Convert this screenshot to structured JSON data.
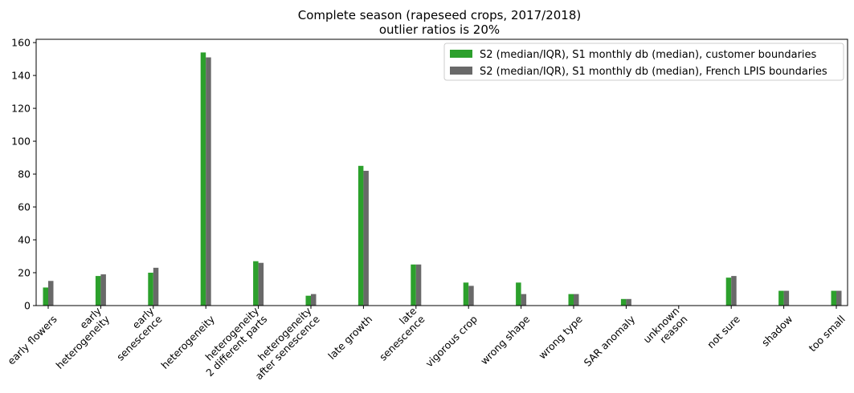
{
  "chart_data": {
    "type": "bar",
    "title_lines": [
      "Complete season (rapeseed crops, 2017/2018)",
      "outlier ratios is 20%"
    ],
    "xlabel": "",
    "ylabel": "",
    "ylim": [
      0,
      162
    ],
    "yticks": [
      0,
      20,
      40,
      60,
      80,
      100,
      120,
      140,
      160
    ],
    "categories": [
      [
        "early flowers"
      ],
      [
        "early",
        "heterogeneity"
      ],
      [
        "early",
        "senescence"
      ],
      [
        "heterogeneity"
      ],
      [
        "heterogeneity",
        "2 different parts"
      ],
      [
        "heterogeneity",
        "after senescence"
      ],
      [
        "late growth"
      ],
      [
        "late",
        "senescence"
      ],
      [
        "vigorous crop"
      ],
      [
        "wrong shape"
      ],
      [
        "wrong type"
      ],
      [
        "SAR anomaly"
      ],
      [
        "unknown",
        "reason"
      ],
      [
        "not sure"
      ],
      [
        "shadow"
      ],
      [
        "too small"
      ]
    ],
    "series": [
      {
        "name": "S2 (median/IQR), S1 monthly db (median), customer boundaries",
        "color": "#2ca02c",
        "values": [
          11,
          18,
          20,
          154,
          27,
          6,
          85,
          25,
          14,
          14,
          7,
          4,
          0,
          17,
          9,
          9
        ]
      },
      {
        "name": "S2 (median/IQR), S1 monthly db (median), French LPIS boundaries",
        "color": "#696969",
        "values": [
          15,
          19,
          23,
          151,
          26,
          7,
          82,
          25,
          12,
          7,
          7,
          4,
          0,
          18,
          9,
          9
        ]
      }
    ],
    "grid": false,
    "legend_position": "top-right"
  }
}
